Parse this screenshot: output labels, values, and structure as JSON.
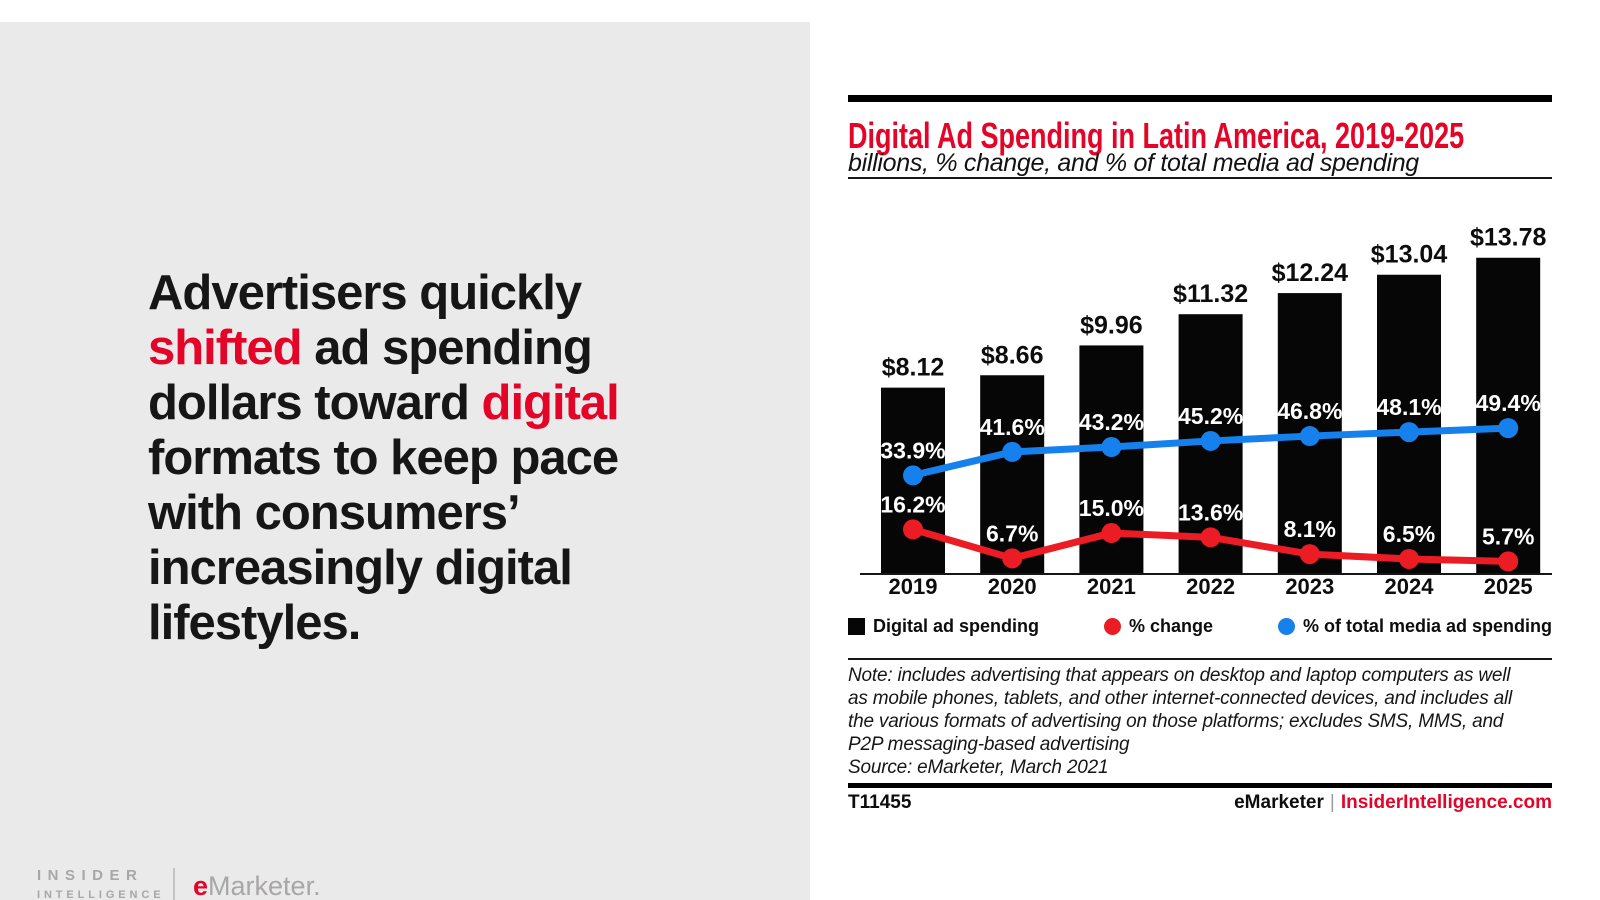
{
  "colors": {
    "accent_red": "#e40428",
    "line_red": "#ec1c24",
    "line_blue": "#1680ec",
    "bar_black": "#060606",
    "panel_gray": "#eaeaeb",
    "text_dark": "#161616",
    "logo_gray": "#a8a6a7"
  },
  "left_panel": {
    "headline_lines": [
      [
        {
          "t": "Advertisers quickly",
          "red": false
        }
      ],
      [
        {
          "t": "shifted",
          "red": true
        },
        {
          "t": " ad spending",
          "red": false
        }
      ],
      [
        {
          "t": "dollars toward ",
          "red": false
        },
        {
          "t": "digital",
          "red": true
        }
      ],
      [
        {
          "t": "formats to keep pace",
          "red": false
        }
      ],
      [
        {
          "t": "with consumers’",
          "red": false
        }
      ],
      [
        {
          "t": "increasingly digital",
          "red": false
        }
      ],
      [
        {
          "t": "lifestyles.",
          "red": false
        }
      ]
    ],
    "logo": {
      "insider_line1": "INSIDER",
      "insider_line2": "INTELLIGENCE",
      "emarketer_e": "e",
      "emarketer_rest": "Marketer."
    }
  },
  "chart_panel": {
    "title": "Digital Ad Spending in Latin America, 2019-2025",
    "subtitle": "billions, % change, and % of total media ad spending",
    "legend": [
      {
        "label": "Digital ad spending",
        "marker": "square",
        "color": "#060606"
      },
      {
        "label": "% change",
        "marker": "circle",
        "color": "#ec1c24"
      },
      {
        "label": "% of total media ad spending",
        "marker": "circle",
        "color": "#1680ec"
      }
    ],
    "note_lines": [
      "Note: includes advertising that appears on desktop and laptop computers as well",
      "as mobile phones, tablets, and other internet-connected devices, and includes all",
      "the various formats of advertising on those platforms; excludes SMS, MMS, and",
      "P2P messaging-based advertising",
      "Source: eMarketer, March 2021"
    ],
    "chart_id": "T11455",
    "footer_brand": "eMarketer",
    "footer_divider": "|",
    "footer_site": "InsiderIntelligence.com"
  },
  "chart_data": {
    "type": "bar",
    "title": "Digital Ad Spending in Latin America, 2019-2025",
    "subtitle": "billions, % change, and % of total media ad spending",
    "categories": [
      "2019",
      "2020",
      "2021",
      "2022",
      "2023",
      "2024",
      "2025"
    ],
    "series": [
      {
        "name": "Digital ad spending",
        "type": "bar",
        "unit": "billions USD",
        "values": [
          8.12,
          8.66,
          9.96,
          11.32,
          12.24,
          13.04,
          13.78
        ],
        "labels": [
          "$8.12",
          "$8.66",
          "$9.96",
          "$11.32",
          "$12.24",
          "$13.04",
          "$13.78"
        ],
        "color": "#060606"
      },
      {
        "name": "% change",
        "type": "line",
        "values": [
          16.2,
          6.7,
          15.0,
          13.6,
          8.1,
          6.5,
          5.7
        ],
        "labels": [
          "16.2%",
          "6.7%",
          "15.0%",
          "13.6%",
          "8.1%",
          "6.5%",
          "5.7%"
        ],
        "color": "#ec1c24"
      },
      {
        "name": "% of total media ad spending",
        "type": "line",
        "values": [
          33.9,
          41.6,
          43.2,
          45.2,
          46.8,
          48.1,
          49.4
        ],
        "labels": [
          "33.9%",
          "41.6%",
          "43.2%",
          "45.2%",
          "46.8%",
          "48.1%",
          "49.4%"
        ],
        "color": "#1680ec"
      }
    ],
    "xlabel": "",
    "ylabel": "",
    "legend_position": "bottom",
    "grid": false
  }
}
